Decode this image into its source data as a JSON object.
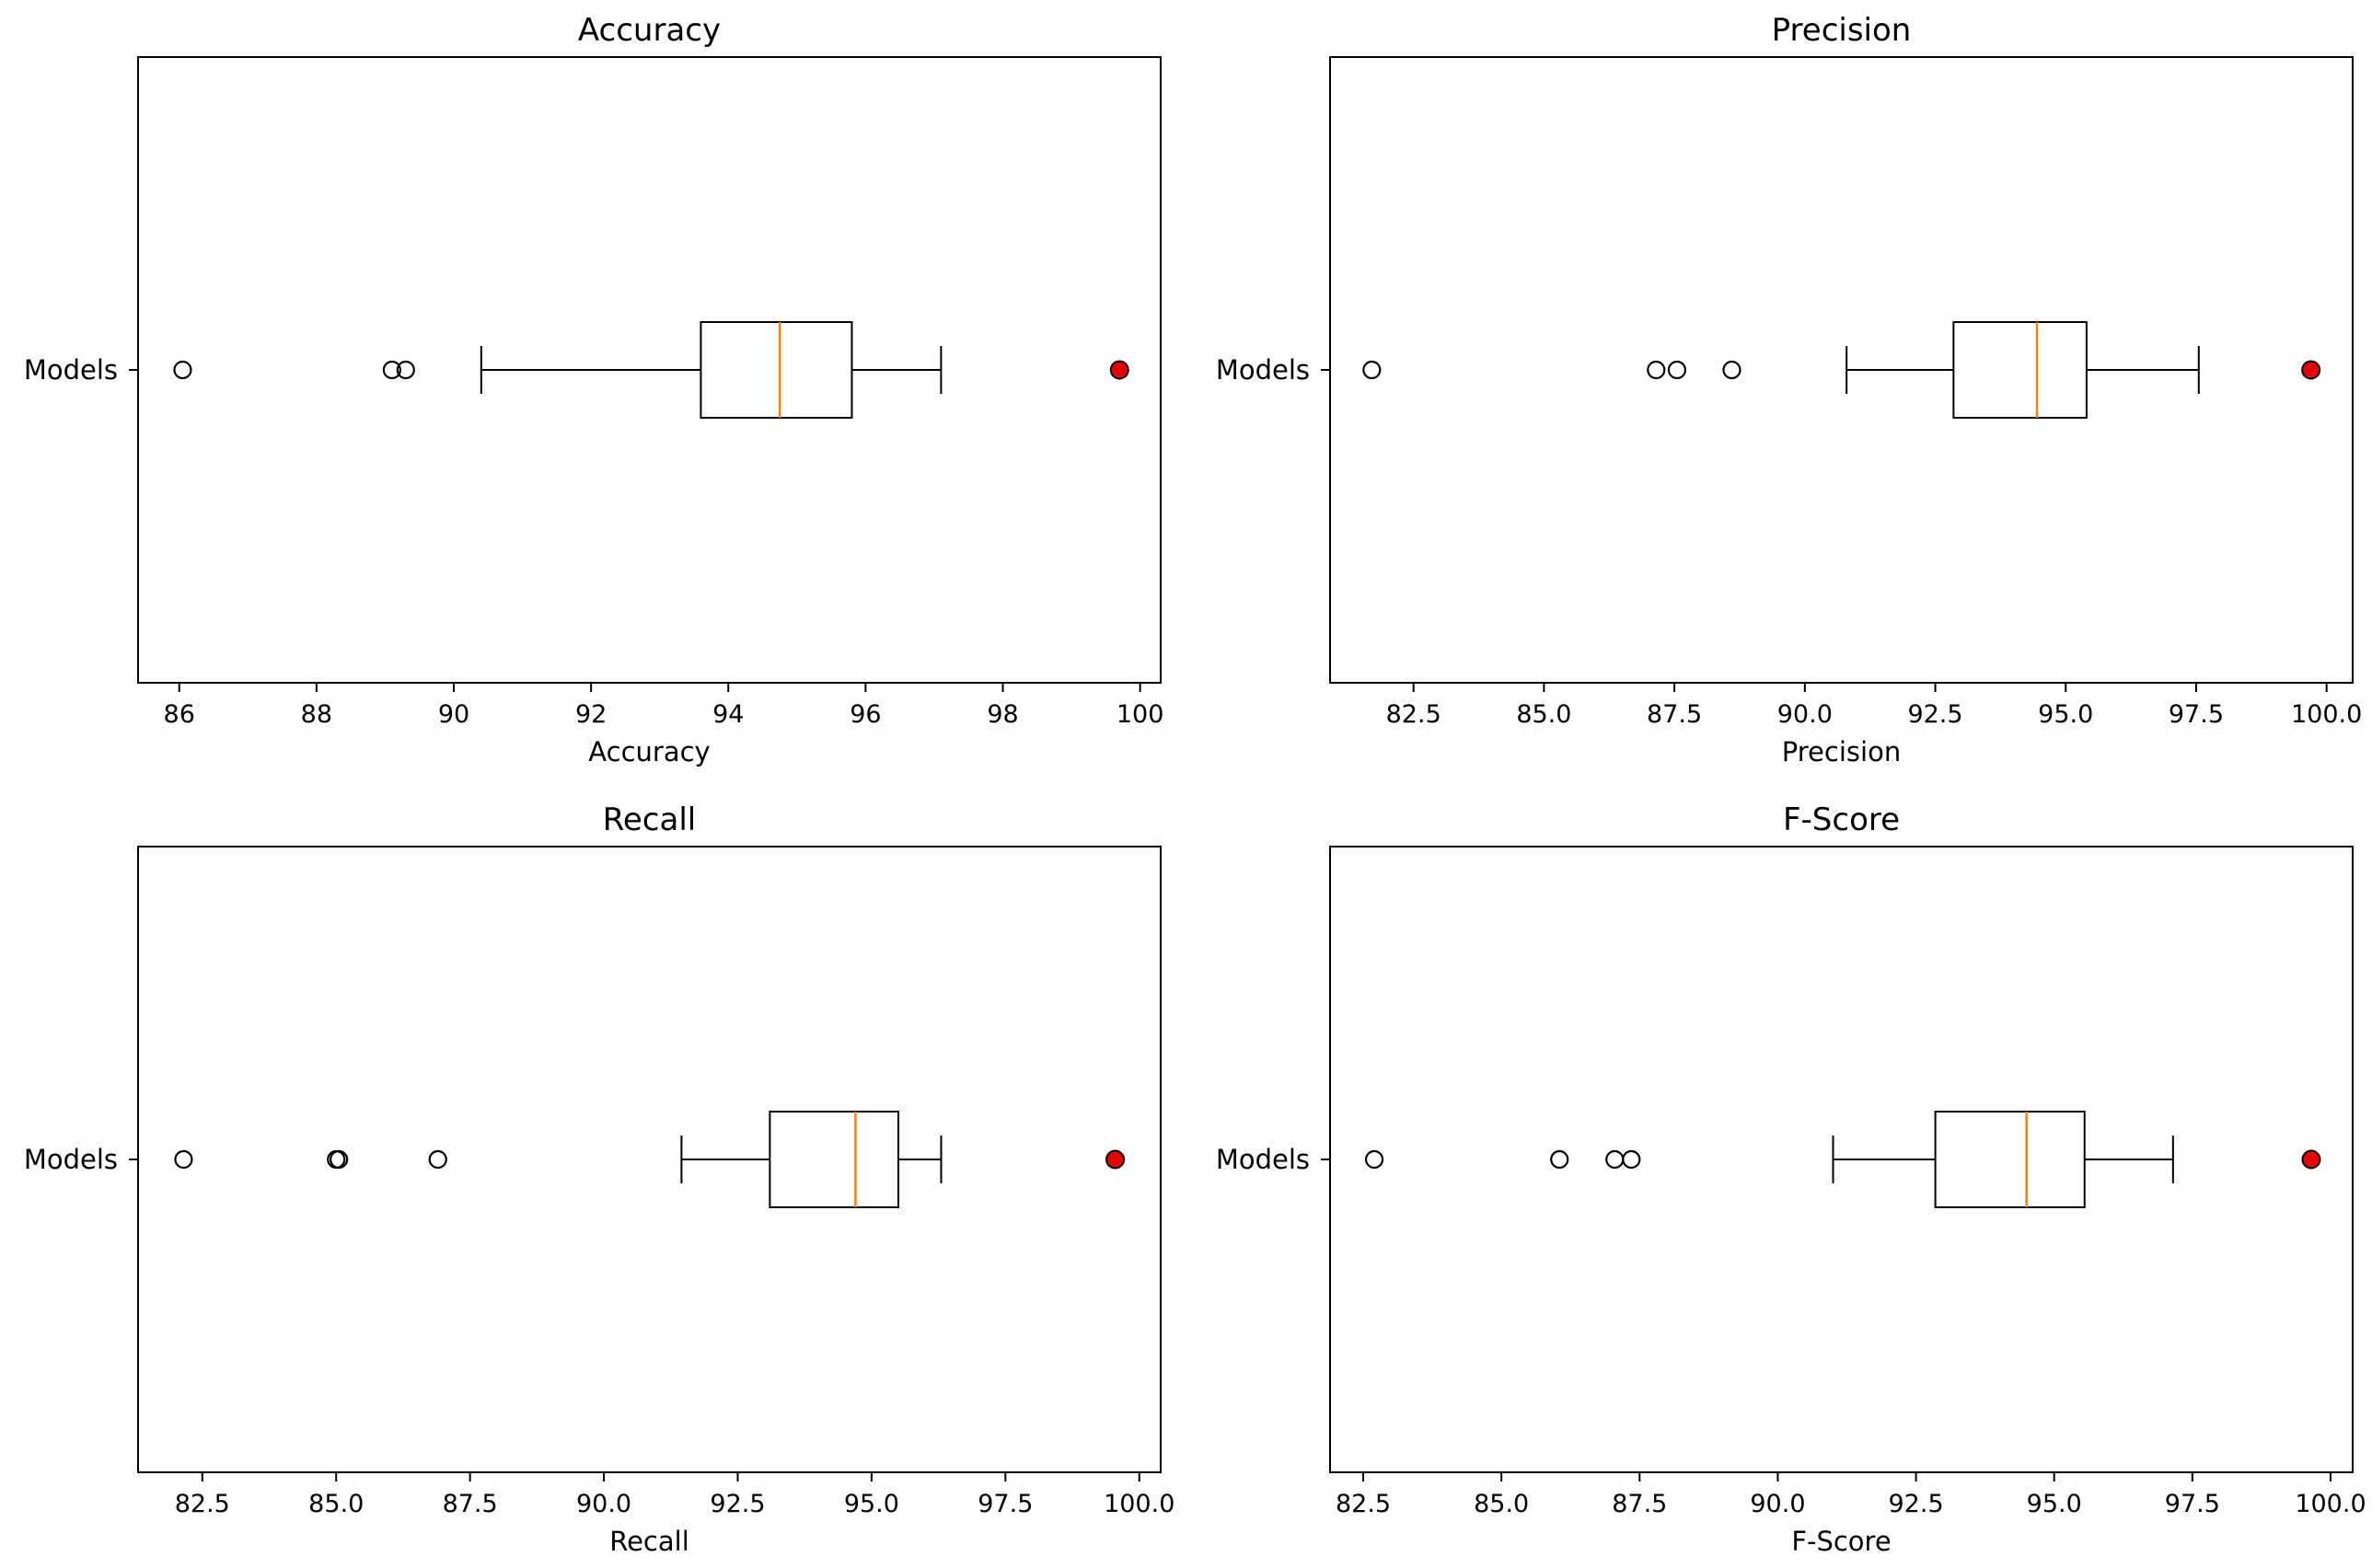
{
  "chart_data": [
    {
      "type": "boxplot",
      "title": "Accuracy",
      "xlabel": "Accuracy",
      "ylabel": "",
      "category": "Models",
      "xlim": [
        85.4,
        100.3
      ],
      "xticks": [
        86,
        88,
        90,
        92,
        94,
        96,
        98,
        100
      ],
      "xtick_labels": [
        "86",
        "88",
        "90",
        "92",
        "94",
        "96",
        "98",
        "100"
      ],
      "box": {
        "whisker_low": 90.4,
        "q1": 93.6,
        "median": 94.75,
        "q3": 95.8,
        "whisker_high": 97.1
      },
      "outliers": [
        86.05,
        89.1,
        89.3
      ],
      "highlight": {
        "value": 99.7,
        "color": "#e60000"
      },
      "colors": {
        "median": "#ff7f0e",
        "highlight": "#e60000"
      }
    },
    {
      "type": "boxplot",
      "title": "Precision",
      "xlabel": "Precision",
      "ylabel": "",
      "category": "Models",
      "xlim": [
        80.9,
        100.5
      ],
      "xticks": [
        82.5,
        85.0,
        87.5,
        90.0,
        92.5,
        95.0,
        97.5,
        100.0
      ],
      "xtick_labels": [
        "82.5",
        "85.0",
        "87.5",
        "90.0",
        "92.5",
        "95.0",
        "97.5",
        "100.0"
      ],
      "box": {
        "whisker_low": 90.8,
        "q1": 92.85,
        "median": 94.45,
        "q3": 95.4,
        "whisker_high": 97.55
      },
      "outliers": [
        81.7,
        87.15,
        87.55,
        88.6
      ],
      "highlight": {
        "value": 99.7,
        "color": "#e60000"
      },
      "colors": {
        "median": "#ff7f0e",
        "highlight": "#e60000"
      }
    },
    {
      "type": "boxplot",
      "title": "Recall",
      "xlabel": "Recall",
      "ylabel": "",
      "category": "Models",
      "xlim": [
        81.3,
        100.4
      ],
      "xticks": [
        82.5,
        85.0,
        87.5,
        90.0,
        92.5,
        95.0,
        97.5,
        100.0
      ],
      "xtick_labels": [
        "82.5",
        "85.0",
        "87.5",
        "90.0",
        "92.5",
        "95.0",
        "97.5",
        "100.0"
      ],
      "box": {
        "whisker_low": 91.45,
        "q1": 93.1,
        "median": 94.7,
        "q3": 95.5,
        "whisker_high": 96.3
      },
      "outliers": [
        82.15,
        85.0,
        85.05,
        86.9
      ],
      "highlight": {
        "value": 99.55,
        "color": "#e60000"
      },
      "colors": {
        "median": "#ff7f0e",
        "highlight": "#e60000"
      }
    },
    {
      "type": "boxplot",
      "title": "F-Score",
      "xlabel": "F-Score",
      "ylabel": "",
      "category": "Models",
      "xlim": [
        81.9,
        100.4
      ],
      "xticks": [
        82.5,
        85.0,
        87.5,
        90.0,
        92.5,
        95.0,
        97.5,
        100.0
      ],
      "xtick_labels": [
        "82.5",
        "85.0",
        "87.5",
        "90.0",
        "92.5",
        "95.0",
        "97.5",
        "100.0"
      ],
      "box": {
        "whisker_low": 91.0,
        "q1": 92.85,
        "median": 94.5,
        "q3": 95.55,
        "whisker_high": 97.15
      },
      "outliers": [
        82.7,
        86.05,
        87.05,
        87.35
      ],
      "highlight": {
        "value": 99.65,
        "color": "#e60000"
      },
      "colors": {
        "median": "#ff7f0e",
        "highlight": "#e60000"
      }
    }
  ]
}
